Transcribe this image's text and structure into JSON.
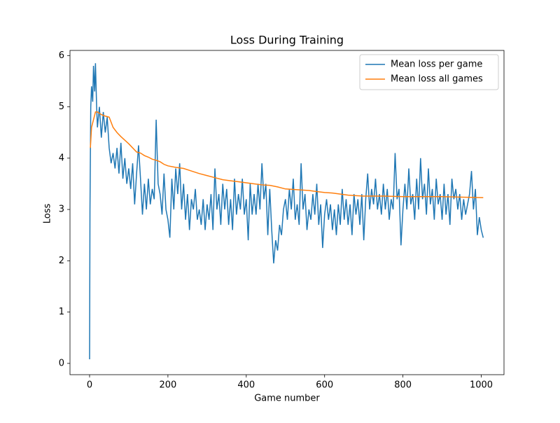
{
  "chart_data": {
    "type": "line",
    "title": "Loss During Training",
    "x_label": "Game number",
    "y_label": "Loss",
    "xlim": [
      -50,
      1058
    ],
    "ylim": [
      -0.22,
      6.1
    ],
    "xticks": [
      0,
      200,
      400,
      600,
      800,
      1000
    ],
    "yticks": [
      0,
      1,
      2,
      3,
      4,
      5,
      6
    ],
    "grid": false,
    "legend": "upper right",
    "series": [
      {
        "name": "Mean loss per game",
        "color": "#1f77b4",
        "x": [
          0,
          1,
          3,
          5,
          8,
          10,
          13,
          15,
          18,
          20,
          25,
          30,
          35,
          40,
          45,
          50,
          55,
          60,
          65,
          70,
          75,
          80,
          85,
          90,
          95,
          100,
          105,
          110,
          115,
          120,
          125,
          130,
          135,
          140,
          145,
          150,
          155,
          160,
          165,
          170,
          175,
          180,
          185,
          190,
          195,
          200,
          205,
          210,
          215,
          220,
          225,
          230,
          235,
          240,
          245,
          250,
          255,
          260,
          265,
          270,
          275,
          280,
          285,
          290,
          295,
          300,
          305,
          310,
          315,
          320,
          325,
          330,
          335,
          340,
          345,
          350,
          355,
          360,
          365,
          370,
          375,
          380,
          385,
          390,
          395,
          400,
          405,
          410,
          415,
          420,
          425,
          430,
          435,
          440,
          445,
          450,
          455,
          460,
          465,
          470,
          475,
          480,
          485,
          490,
          495,
          500,
          505,
          510,
          515,
          520,
          525,
          530,
          535,
          540,
          545,
          550,
          555,
          560,
          565,
          570,
          575,
          580,
          585,
          590,
          595,
          600,
          605,
          610,
          615,
          620,
          625,
          630,
          635,
          640,
          645,
          650,
          655,
          660,
          665,
          670,
          675,
          680,
          685,
          690,
          695,
          700,
          705,
          710,
          715,
          720,
          725,
          730,
          735,
          740,
          745,
          750,
          755,
          760,
          765,
          770,
          775,
          780,
          785,
          790,
          795,
          800,
          805,
          810,
          815,
          820,
          825,
          830,
          835,
          840,
          845,
          850,
          855,
          860,
          865,
          870,
          875,
          880,
          885,
          890,
          895,
          900,
          905,
          910,
          915,
          920,
          925,
          930,
          935,
          940,
          945,
          950,
          955,
          960,
          965,
          970,
          975,
          980,
          985,
          990,
          995,
          1000,
          1005
        ],
        "values": [
          0.08,
          3.0,
          5.0,
          5.4,
          5.1,
          5.8,
          5.3,
          5.85,
          5.0,
          4.6,
          5.0,
          4.4,
          4.9,
          4.5,
          4.8,
          4.2,
          3.9,
          4.1,
          3.8,
          4.2,
          3.7,
          4.3,
          3.6,
          4.0,
          3.5,
          3.8,
          3.4,
          3.9,
          3.1,
          3.7,
          4.25,
          3.6,
          2.9,
          3.5,
          3.0,
          3.6,
          3.1,
          3.4,
          3.2,
          4.75,
          3.5,
          3.3,
          2.9,
          3.7,
          3.0,
          2.8,
          2.45,
          3.6,
          3.0,
          3.8,
          3.3,
          3.9,
          3.0,
          3.5,
          2.8,
          3.3,
          2.6,
          3.2,
          3.0,
          3.4,
          2.8,
          3.0,
          2.7,
          3.2,
          2.6,
          3.1,
          2.8,
          3.3,
          2.6,
          3.8,
          3.0,
          3.3,
          2.7,
          3.5,
          3.0,
          3.4,
          2.7,
          3.2,
          2.6,
          3.6,
          2.9,
          3.3,
          3.0,
          3.6,
          2.9,
          3.2,
          2.4,
          3.5,
          2.9,
          3.3,
          2.9,
          3.5,
          3.0,
          3.9,
          3.2,
          3.5,
          2.5,
          3.4,
          2.6,
          1.95,
          2.4,
          2.2,
          2.7,
          2.5,
          3.0,
          3.2,
          2.8,
          3.4,
          3.0,
          3.6,
          2.8,
          3.1,
          2.7,
          3.9,
          3.0,
          3.3,
          2.6,
          3.0,
          2.8,
          3.3,
          2.9,
          3.5,
          2.7,
          3.1,
          2.25,
          2.9,
          3.2,
          2.8,
          3.1,
          2.6,
          3.0,
          2.5,
          3.1,
          2.7,
          3.4,
          2.8,
          3.2,
          2.7,
          3.1,
          2.5,
          3.3,
          2.9,
          3.2,
          2.7,
          3.3,
          2.4,
          3.2,
          3.7,
          3.0,
          3.4,
          3.1,
          3.6,
          3.0,
          3.3,
          2.9,
          3.5,
          3.0,
          3.4,
          2.8,
          3.2,
          3.0,
          4.1,
          3.2,
          3.4,
          2.3,
          3.0,
          3.5,
          3.0,
          3.8,
          3.1,
          3.3,
          2.8,
          3.6,
          3.0,
          4.0,
          3.2,
          3.5,
          2.9,
          3.8,
          3.1,
          3.4,
          2.8,
          3.6,
          3.1,
          3.3,
          2.8,
          3.5,
          2.9,
          3.3,
          2.7,
          3.6,
          3.2,
          3.4,
          3.0,
          3.3,
          2.8,
          3.2,
          2.9,
          3.1,
          3.3,
          3.75,
          3.0,
          3.4,
          2.5,
          2.85,
          2.6,
          2.45
        ]
      },
      {
        "name": "Mean loss all games",
        "color": "#ff7f0e",
        "x": [
          2,
          5,
          10,
          15,
          20,
          30,
          40,
          50,
          60,
          70,
          80,
          90,
          100,
          110,
          120,
          130,
          140,
          150,
          160,
          170,
          180,
          190,
          200,
          220,
          240,
          260,
          280,
          300,
          320,
          340,
          360,
          380,
          400,
          420,
          440,
          460,
          480,
          500,
          520,
          540,
          560,
          580,
          600,
          620,
          640,
          660,
          680,
          700,
          750,
          800,
          850,
          900,
          950,
          1005
        ],
        "values": [
          4.2,
          4.6,
          4.75,
          4.9,
          4.9,
          4.85,
          4.82,
          4.8,
          4.6,
          4.5,
          4.42,
          4.35,
          4.28,
          4.2,
          4.12,
          4.1,
          4.05,
          4.02,
          3.98,
          3.96,
          3.93,
          3.88,
          3.85,
          3.82,
          3.8,
          3.75,
          3.7,
          3.66,
          3.62,
          3.58,
          3.56,
          3.54,
          3.52,
          3.5,
          3.48,
          3.47,
          3.44,
          3.4,
          3.39,
          3.38,
          3.37,
          3.35,
          3.33,
          3.32,
          3.3,
          3.28,
          3.27,
          3.26,
          3.26,
          3.25,
          3.25,
          3.25,
          3.24,
          3.23
        ]
      }
    ]
  }
}
